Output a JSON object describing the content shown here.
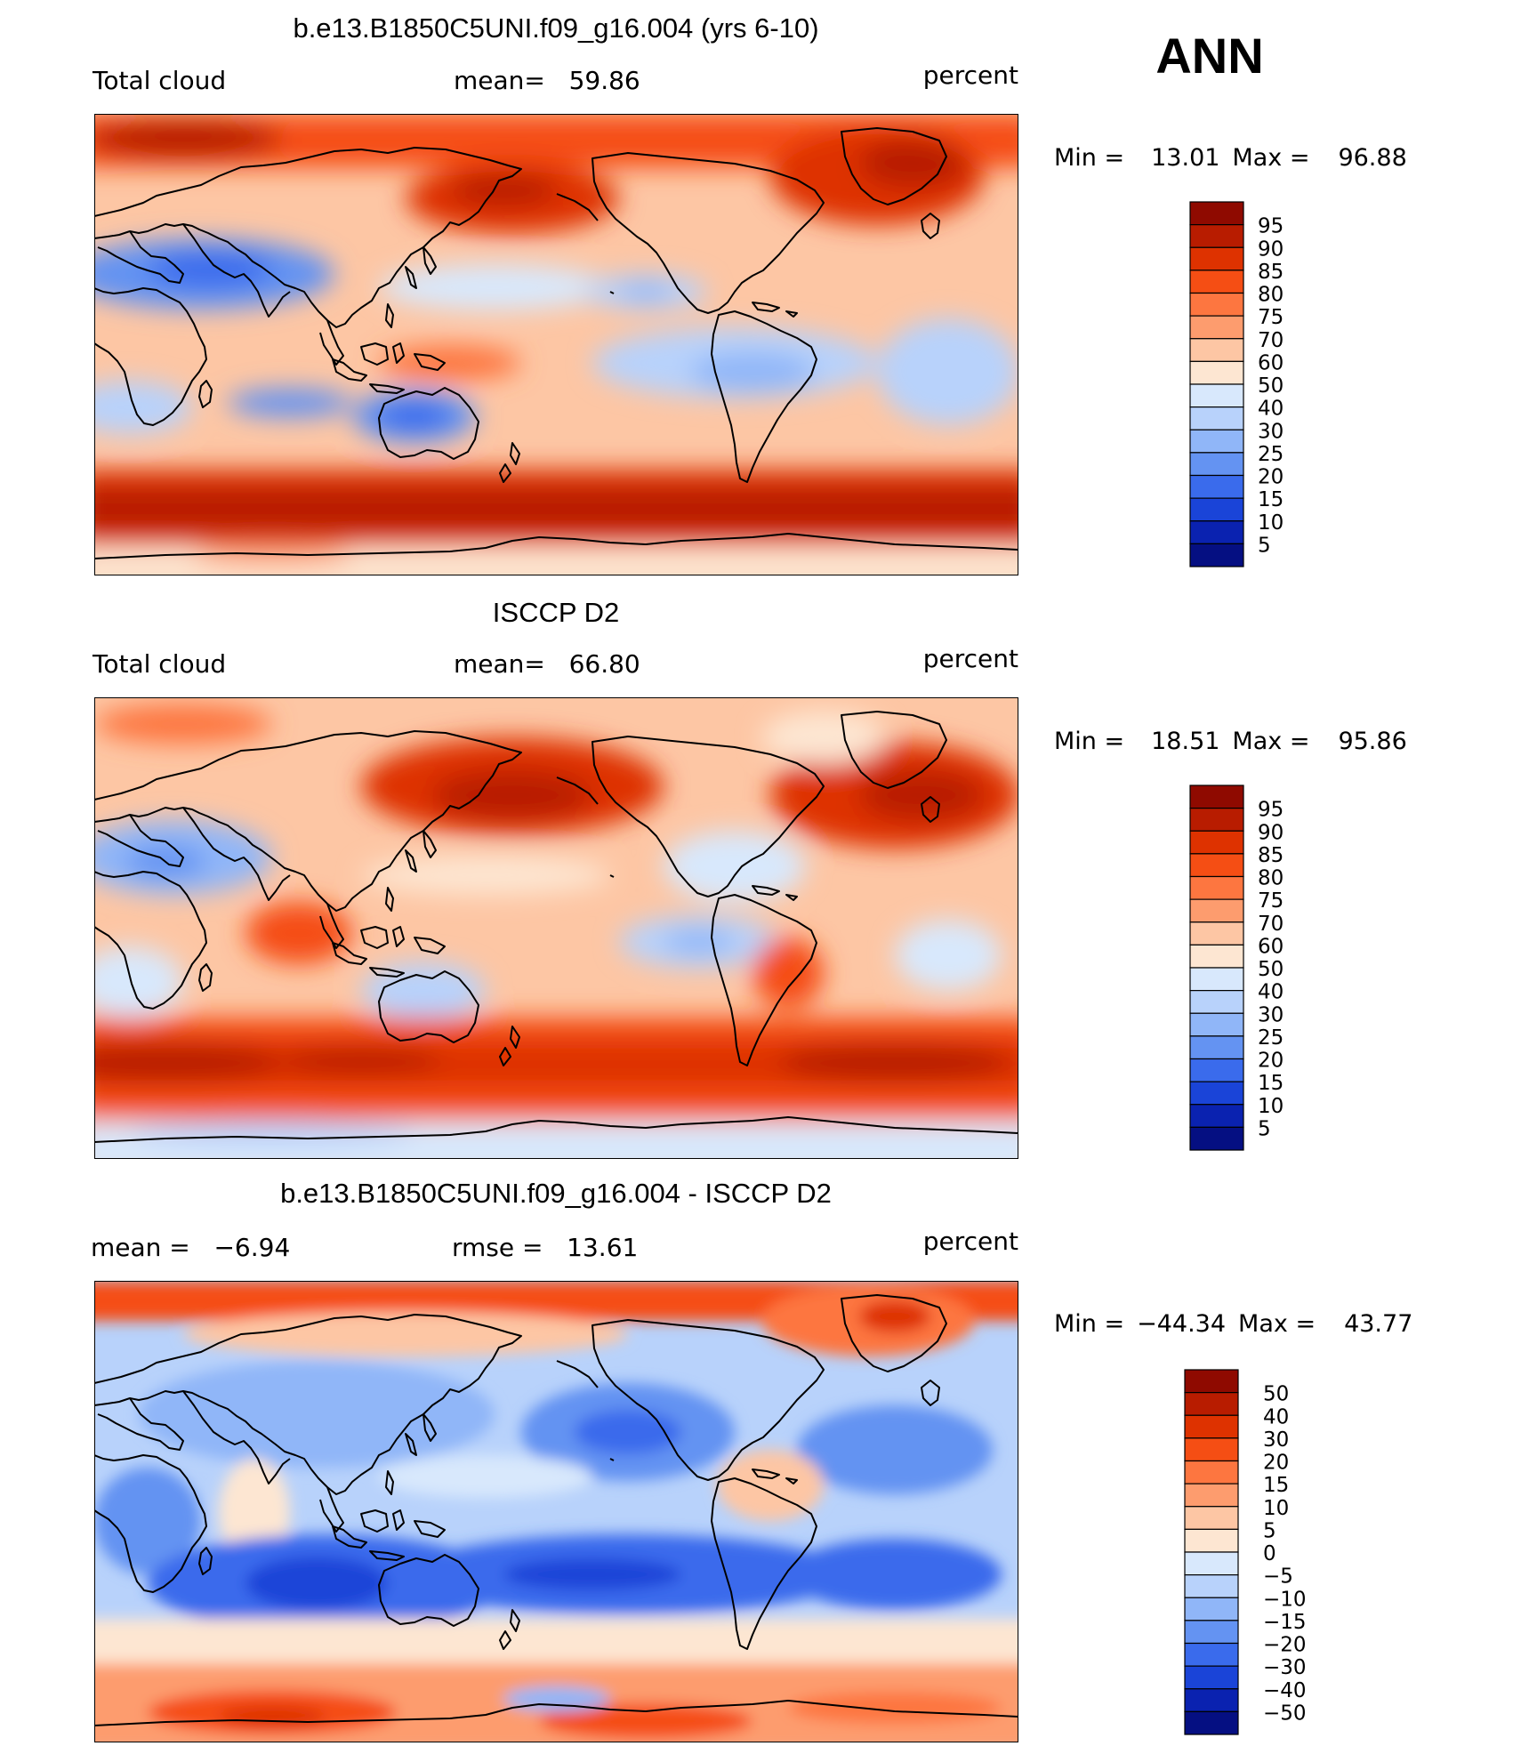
{
  "season": "ANN",
  "panels": [
    {
      "title": "b.e13.B1850C5UNI.f09_g16.004 (yrs 6-10)",
      "left_label": "Total cloud",
      "center_label": "mean=   59.86",
      "units": "percent",
      "min_label": "Min =",
      "min_value": "13.01",
      "max_label": "Max =",
      "max_value": "96.88",
      "legend_labels": [
        "95",
        "90",
        "85",
        "80",
        "75",
        "70",
        "60",
        "50",
        "40",
        "30",
        "25",
        "20",
        "15",
        "10",
        "5"
      ],
      "legend_colors": [
        "#8f0a00",
        "#b81c00",
        "#de3200",
        "#f54e14",
        "#fd7640",
        "#fd9c6e",
        "#fdc6a4",
        "#fde6d2",
        "#d8e8fc",
        "#b8d2fb",
        "#90b6f8",
        "#6493f2",
        "#3a6bec",
        "#1a44d8",
        "#0a22b0",
        "#050f82"
      ]
    },
    {
      "title": "ISCCP D2",
      "left_label": "Total cloud",
      "center_label": "mean=   66.80",
      "units": "percent",
      "min_label": "Min =",
      "min_value": "18.51",
      "max_label": "Max =",
      "max_value": "95.86",
      "legend_labels": [
        "95",
        "90",
        "85",
        "80",
        "75",
        "70",
        "60",
        "50",
        "40",
        "30",
        "25",
        "20",
        "15",
        "10",
        "5"
      ],
      "legend_colors": [
        "#8f0a00",
        "#b81c00",
        "#de3200",
        "#f54e14",
        "#fd7640",
        "#fd9c6e",
        "#fdc6a4",
        "#fde6d2",
        "#d8e8fc",
        "#b8d2fb",
        "#90b6f8",
        "#6493f2",
        "#3a6bec",
        "#1a44d8",
        "#0a22b0",
        "#050f82"
      ]
    },
    {
      "title": "b.e13.B1850C5UNI.f09_g16.004 - ISCCP D2",
      "left_label": "mean =   −6.94",
      "center_label": "rmse =   13.61",
      "units": "percent",
      "min_label": "Min =",
      "min_value": "−44.34",
      "max_label": "Max =",
      "max_value": "43.77",
      "legend_labels": [
        "50",
        "40",
        "30",
        "20",
        "15",
        "10",
        "5",
        "0",
        "−5",
        "−10",
        "−15",
        "−20",
        "−30",
        "−40",
        "−50"
      ],
      "legend_colors": [
        "#8f0a00",
        "#b81c00",
        "#de3200",
        "#f54e14",
        "#fd7640",
        "#fd9c6e",
        "#fdc6a4",
        "#fde6d2",
        "#d8e8fc",
        "#b8d2fb",
        "#90b6f8",
        "#6493f2",
        "#3a6bec",
        "#1a44d8",
        "#0a22b0",
        "#050f82"
      ]
    }
  ]
}
